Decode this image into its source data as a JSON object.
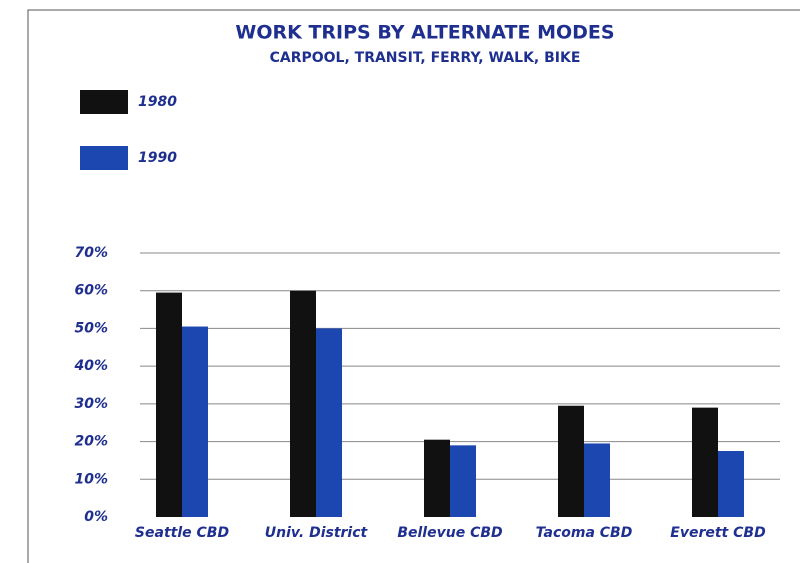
{
  "chart_data": {
    "type": "bar",
    "title": "WORK TRIPS BY ALTERNATE MODES",
    "subtitle": "CARPOOL, TRANSIT, FERRY, WALK, BIKE",
    "categories": [
      "Seattle CBD",
      "Univ. District",
      "Bellevue CBD",
      "Tacoma CBD",
      "Everett CBD"
    ],
    "series": [
      {
        "name": "1980",
        "color": "#111111",
        "values": [
          59.5,
          60,
          20.5,
          29.5,
          29
        ]
      },
      {
        "name": "1990",
        "color": "#1c46b0",
        "values": [
          50.5,
          50,
          19,
          19.5,
          17.5
        ]
      }
    ],
    "ylim": [
      0,
      70
    ],
    "yticks": [
      {
        "value": 0,
        "label": "0%"
      },
      {
        "value": 10,
        "label": "10%"
      },
      {
        "value": 20,
        "label": "20%"
      },
      {
        "value": 30,
        "label": "30%"
      },
      {
        "value": 40,
        "label": "40%"
      },
      {
        "value": 50,
        "label": "50%"
      },
      {
        "value": 60,
        "label": "60%"
      },
      {
        "value": 70,
        "label": "70%"
      }
    ],
    "grid": true,
    "legend": "top-left"
  }
}
